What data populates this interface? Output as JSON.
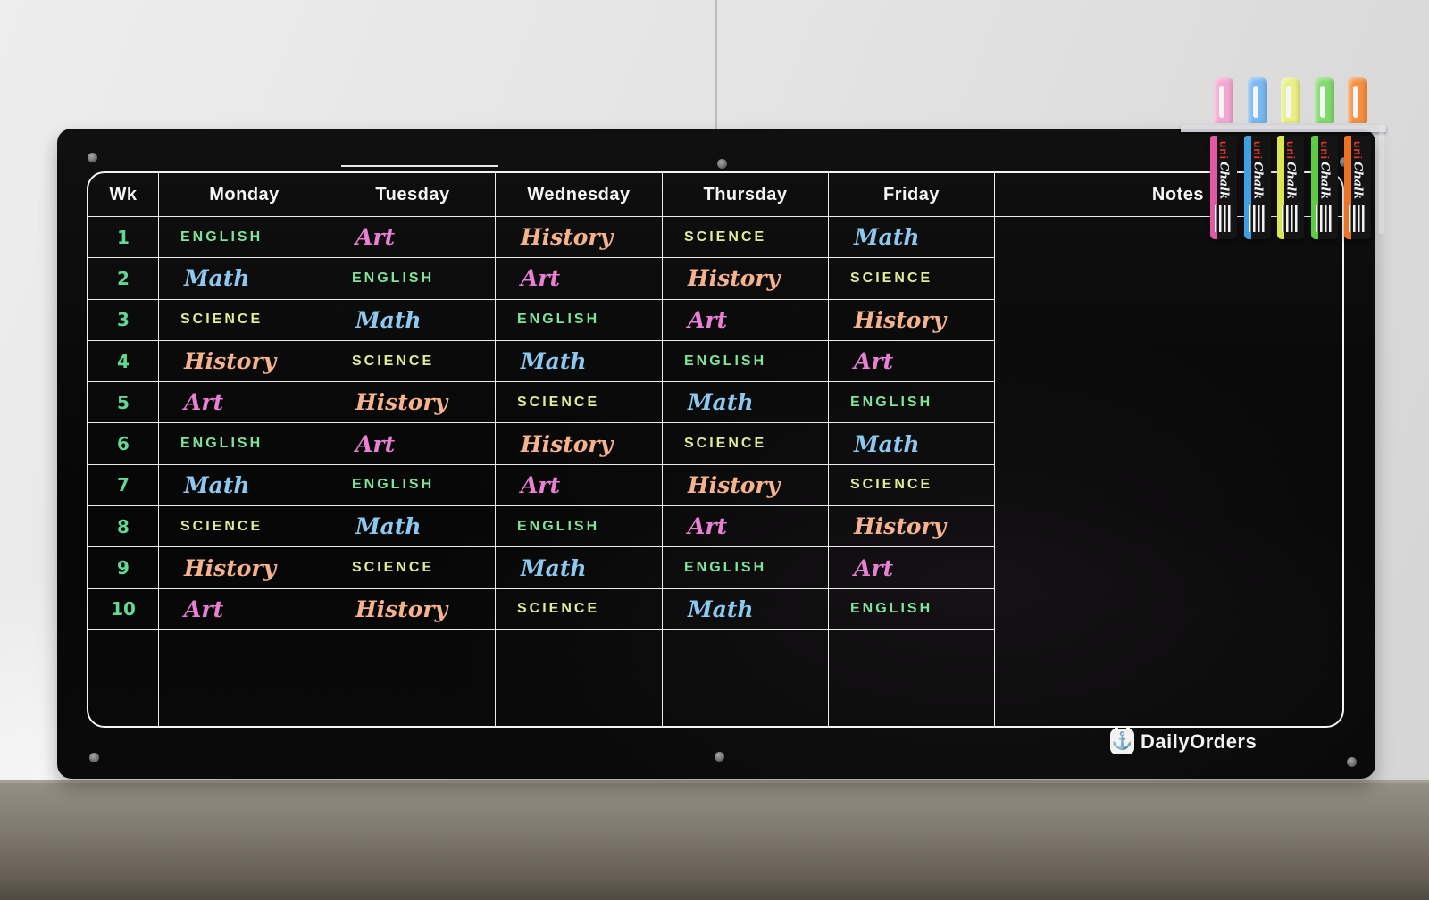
{
  "board": {
    "brand_logo": "DailyOrders",
    "columns": [
      "Wk",
      "Monday",
      "Tuesday",
      "Wednesday",
      "Thursday",
      "Friday",
      "Notes"
    ],
    "weeks": [
      {
        "num": "1",
        "subjects": [
          "ENGLISH",
          "Art",
          "History",
          "SCIENCE",
          "Math"
        ]
      },
      {
        "num": "2",
        "subjects": [
          "Math",
          "ENGLISH",
          "Art",
          "History",
          "SCIENCE"
        ]
      },
      {
        "num": "3",
        "subjects": [
          "SCIENCE",
          "Math",
          "ENGLISH",
          "Art",
          "History"
        ]
      },
      {
        "num": "4",
        "subjects": [
          "History",
          "SCIENCE",
          "Math",
          "ENGLISH",
          "Art"
        ]
      },
      {
        "num": "5",
        "subjects": [
          "Art",
          "History",
          "SCIENCE",
          "Math",
          "ENGLISH"
        ]
      },
      {
        "num": "6",
        "subjects": [
          "ENGLISH",
          "Art",
          "History",
          "SCIENCE",
          "Math"
        ]
      },
      {
        "num": "7",
        "subjects": [
          "Math",
          "ENGLISH",
          "Art",
          "History",
          "SCIENCE"
        ]
      },
      {
        "num": "8",
        "subjects": [
          "SCIENCE",
          "Math",
          "ENGLISH",
          "Art",
          "History"
        ]
      },
      {
        "num": "9",
        "subjects": [
          "History",
          "SCIENCE",
          "Math",
          "ENGLISH",
          "Art"
        ]
      },
      {
        "num": "10",
        "subjects": [
          "Art",
          "History",
          "SCIENCE",
          "Math",
          "ENGLISH"
        ]
      }
    ],
    "empty_row_count": 2,
    "colors": {
      "board_bg": "#0a0a0a",
      "grid_line": "#f4f4f4",
      "header_text": "#f5f5f5",
      "week_number": "#63d893",
      "subjects": {
        "ENGLISH": "#7ee49b",
        "Math": "#8cc8ef",
        "SCIENCE": "#dcee93",
        "History": "#f5b28e",
        "Art": "#e980d4"
      }
    }
  },
  "markers": {
    "brand": "uni",
    "product": "Chalk",
    "pens": [
      {
        "color_name": "pink",
        "cap": "#f3a8d3",
        "barrel": "#e457a5"
      },
      {
        "color_name": "blue",
        "cap": "#7ab8f0",
        "barrel": "#3f9fe3"
      },
      {
        "color_name": "yellow",
        "cap": "#e9f083",
        "barrel": "#d9e850"
      },
      {
        "color_name": "green",
        "cap": "#82da6d",
        "barrel": "#5ecb45"
      },
      {
        "color_name": "orange",
        "cap": "#f59040",
        "barrel": "#ee7223"
      }
    ]
  }
}
